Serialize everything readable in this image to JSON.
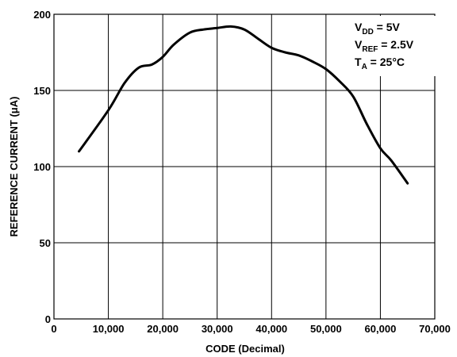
{
  "chart_data": {
    "type": "line",
    "xlabel": "CODE (Decimal)",
    "ylabel": "REFERENCE CURRENT (μA)",
    "xlim": [
      0,
      70000
    ],
    "ylim": [
      0,
      200
    ],
    "x_ticks": [
      0,
      10000,
      20000,
      30000,
      40000,
      50000,
      60000,
      70000
    ],
    "x_tick_labels": [
      "0",
      "10,000",
      "20,000",
      "30,000",
      "40,000",
      "50,000",
      "60,000",
      "70,000"
    ],
    "y_ticks": [
      0,
      50,
      100,
      150,
      200
    ],
    "y_tick_labels": [
      "0",
      "50",
      "100",
      "150",
      "200"
    ],
    "grid": true,
    "annotations": [
      {
        "main": "V",
        "sub": "DD",
        "rest": " = 5V"
      },
      {
        "main": "V",
        "sub": "REF",
        "rest": " = 2.5V"
      },
      {
        "main": "T",
        "sub": "A",
        "rest": " = 25°C"
      }
    ],
    "series": [
      {
        "x": [
          4600,
          10000,
          13000,
          15600,
          18000,
          20000,
          22000,
          25000,
          27500,
          30000,
          32500,
          35000,
          37500,
          40000,
          42500,
          45000,
          47500,
          50000,
          52500,
          55000,
          57500,
          60000,
          62000,
          65000
        ],
        "y": [
          110,
          137,
          155,
          165,
          167,
          172,
          180,
          188,
          190,
          191,
          192,
          190,
          184,
          178,
          175,
          173,
          169,
          164,
          156,
          146,
          128,
          112,
          104,
          89
        ],
        "color": "#000000"
      }
    ]
  }
}
